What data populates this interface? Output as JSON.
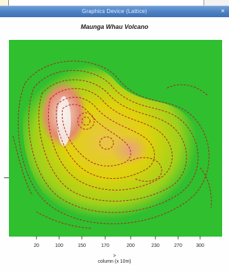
{
  "window": {
    "title": "Graphics Device (Lattice)",
    "close_glyph": "×"
  },
  "plot": {
    "title": "Maunga Whau Volcano",
    "x_tick_labels": [
      "20",
      "100",
      "150",
      "170",
      "200",
      "230",
      "270",
      "300"
    ],
    "x_arrow": ">",
    "x_label": "column (x 10m)",
    "colors": {
      "low": "#2eb82e",
      "mid": "#e6d300",
      "high": "#e8a080",
      "peak": "#f3efe8",
      "contour": "#b02020"
    }
  }
}
